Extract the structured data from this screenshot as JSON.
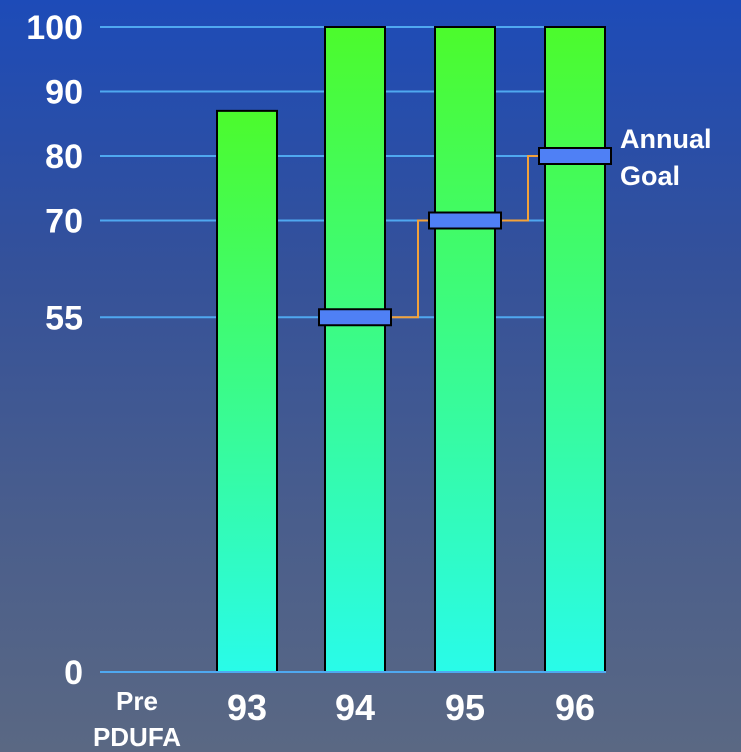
{
  "chart_data": {
    "type": "bar",
    "categories": [
      {
        "line1": "Pre",
        "line2": "PDUFA"
      },
      {
        "line1": "93",
        "line2": ""
      },
      {
        "line1": "94",
        "line2": ""
      },
      {
        "line1": "95",
        "line2": ""
      },
      {
        "line1": "96",
        "line2": ""
      }
    ],
    "values": [
      0,
      87,
      100,
      100,
      100
    ],
    "goals": [
      null,
      null,
      55,
      70,
      80
    ],
    "goal_label_line1": "Annual",
    "goal_label_line2": "Goal",
    "yticks": [
      "0",
      "55",
      "70",
      "80",
      "90",
      "100"
    ],
    "ylim": [
      0,
      100
    ],
    "grid": true,
    "colors": {
      "bar_top": "#4cfb2c",
      "bar_bottom": "#29fbe9",
      "grid": "#4fa8f0",
      "goal_marker": "#4f80f5",
      "goal_line": "#f4a23a",
      "text": "#ffffff"
    }
  }
}
